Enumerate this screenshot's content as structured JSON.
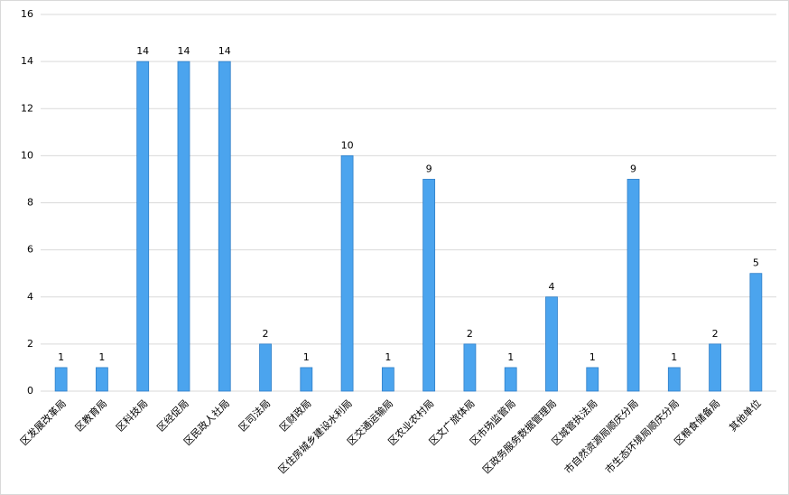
{
  "chart_data": {
    "type": "bar",
    "categories": [
      "区发展改革局",
      "区教育局",
      "区科技局",
      "区经促局",
      "区民政人社局",
      "区司法局",
      "区财政局",
      "区住房城乡建设水利局",
      "区交通运输局",
      "区农业农村局",
      "区文广旅体局",
      "区市场监管局",
      "区政务服务数据管理局",
      "区城管执法局",
      "市自然资源局顺庆分局",
      "市生态环境局顺庆分局",
      "区粮食储备局",
      "其他单位"
    ],
    "values": [
      1,
      1,
      14,
      14,
      14,
      2,
      1,
      10,
      1,
      9,
      2,
      1,
      4,
      1,
      9,
      1,
      2,
      5
    ],
    "color": "#4ba4ee",
    "ylim": [
      0,
      16
    ],
    "yticks": [
      0,
      2,
      4,
      6,
      8,
      10,
      12,
      14,
      16
    ],
    "grid": true
  }
}
